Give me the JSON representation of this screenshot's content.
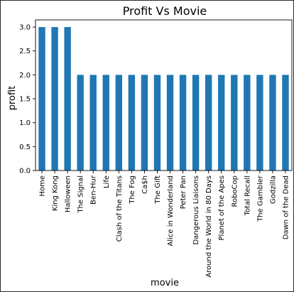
{
  "chart_data": {
    "type": "bar",
    "title": "Profit Vs Movie",
    "xlabel": "movie",
    "ylabel": "profit",
    "ylim": [
      0,
      3.15
    ],
    "yticks": [
      "0.0",
      "0.5",
      "1.0",
      "1.5",
      "2.0",
      "2.5",
      "3.0"
    ],
    "grid": false,
    "bar_color": "#1f77b4",
    "categories": [
      "Home",
      "King Kong",
      "Halloween",
      "The Signal",
      "Ben-Hur",
      "Life",
      "Clash of the Titans",
      "The Fog",
      "Ca$h",
      "The Gift",
      "Alice in Wonderland",
      "Peter Pan",
      "Dangerous Liaisons",
      "Around the World in 80 Days",
      "Planet of the Apes",
      "RoboCop",
      "Total Recall",
      "The Gambler",
      "Godzilla",
      "Dawn of the Dead"
    ],
    "values": [
      3,
      3,
      3,
      2,
      2,
      2,
      2,
      2,
      2,
      2,
      2,
      2,
      2,
      2,
      2,
      2,
      2,
      2,
      2,
      2
    ]
  }
}
